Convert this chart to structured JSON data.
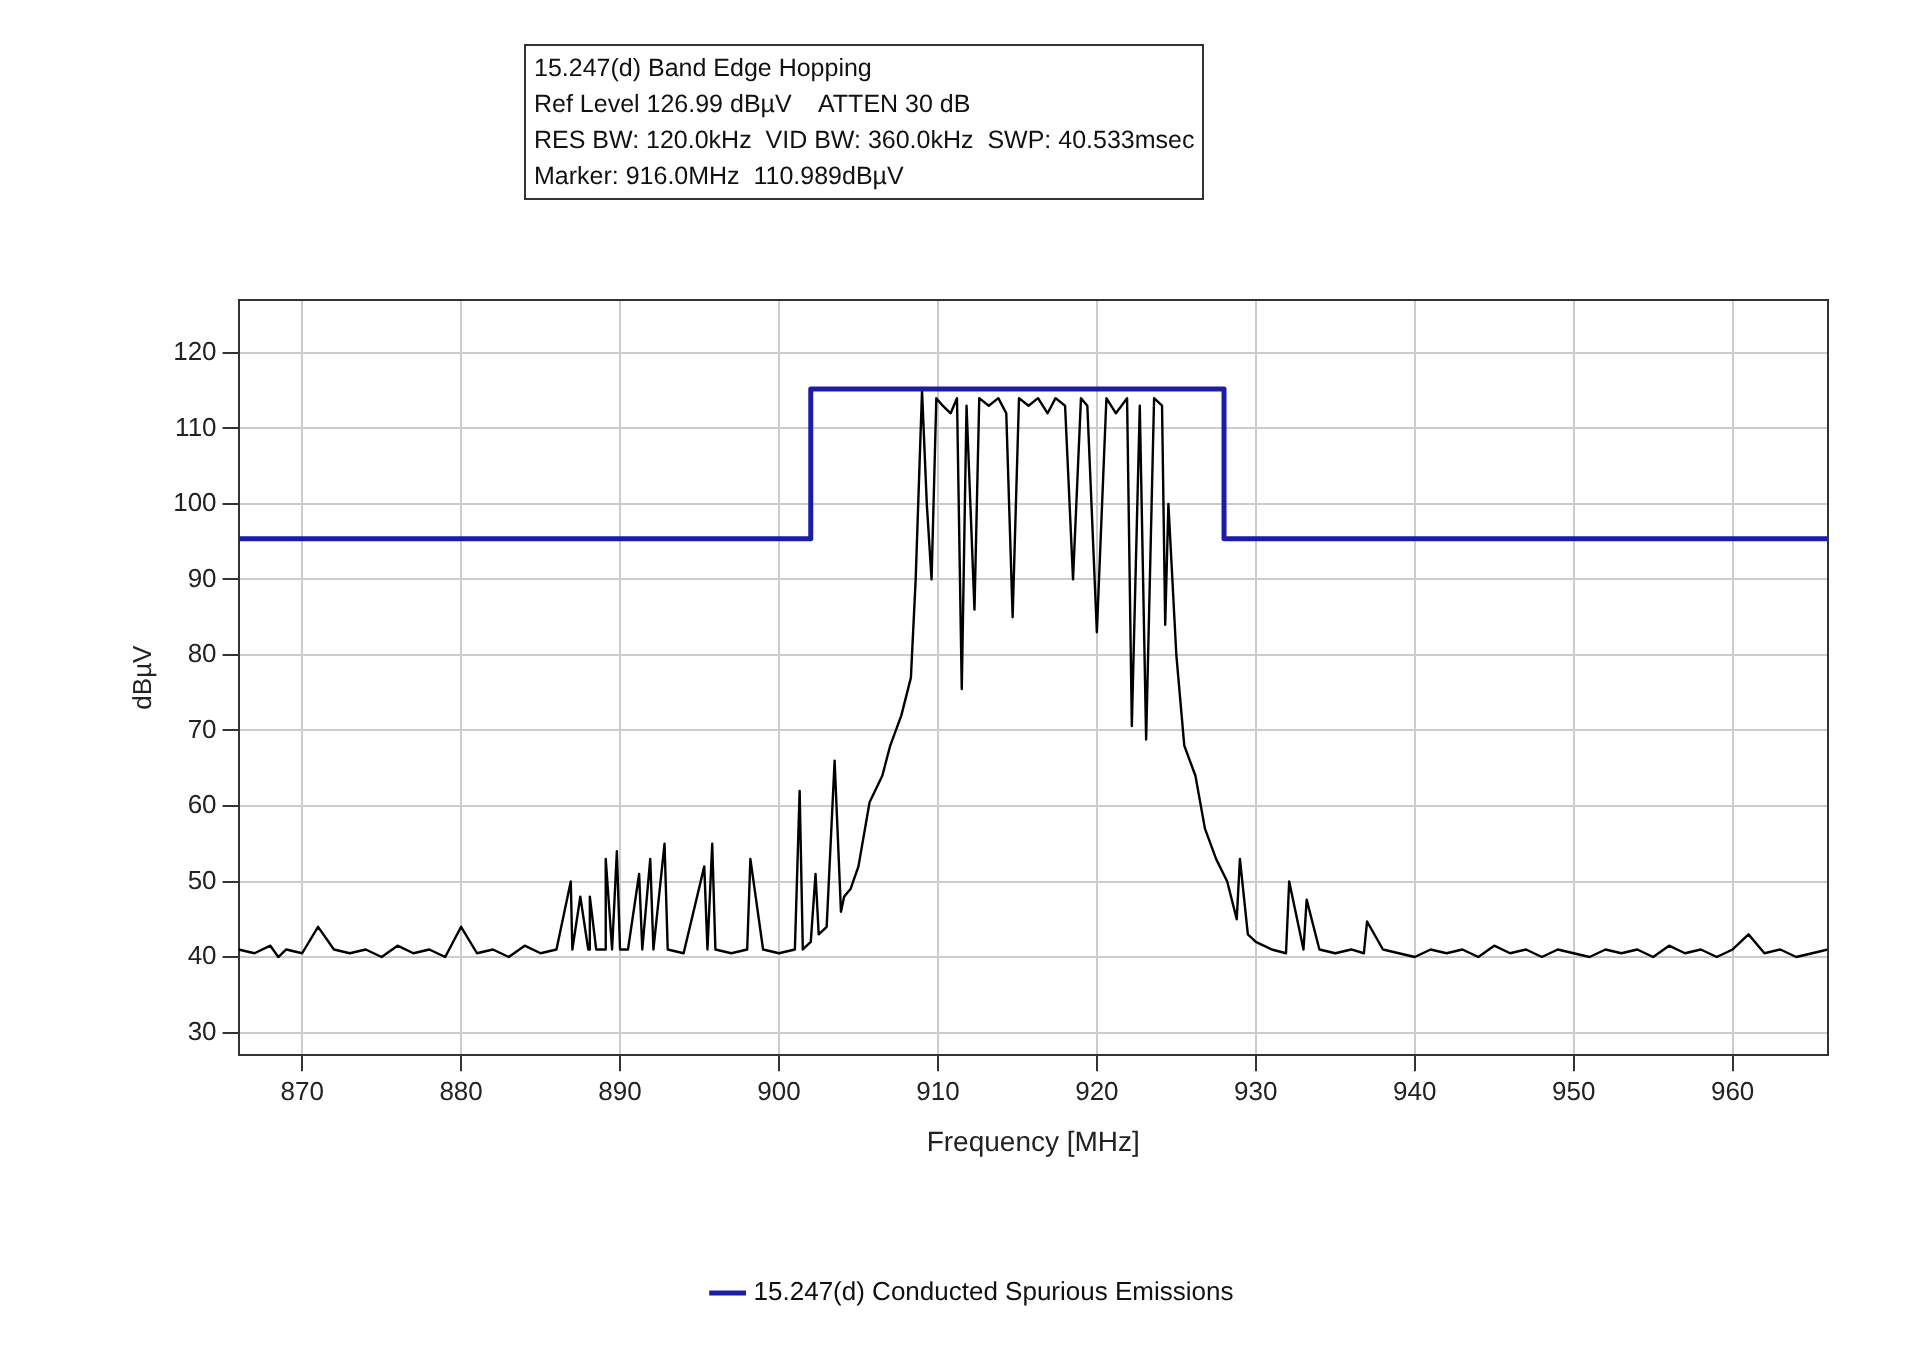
{
  "chart_data": {
    "type": "line",
    "title": "15.247(d) Band Edge Hopping",
    "annotations": [
      "Ref Level 126.99 dBµV    ATTEN 30 dB",
      "RES BW: 120.0kHz  VID BW: 360.0kHz  SWP: 40.533msec",
      "Marker: 916.0MHz  110.989dBµV"
    ],
    "xlabel": "Frequency [MHz]",
    "ylabel": "dBµV",
    "xlim": [
      866,
      966
    ],
    "ylim": [
      27,
      127
    ],
    "xticks": [
      870,
      880,
      890,
      900,
      910,
      920,
      930,
      940,
      950,
      960
    ],
    "yticks": [
      30,
      40,
      50,
      60,
      70,
      80,
      90,
      100,
      110,
      120
    ],
    "grid": true,
    "legend": "bottom",
    "marker": "none",
    "line_style": "solid",
    "series": [
      {
        "name": "15.247(d) Conducted Spurious Emissions",
        "color": "#1c1ca8",
        "x": [
          866,
          902,
          902,
          928,
          928,
          966
        ],
        "values": [
          95.4,
          95.4,
          115.2,
          115.2,
          95.4,
          95.4
        ]
      },
      {
        "color": "#000000",
        "x": [
          866,
          867,
          868,
          868.5,
          869,
          870,
          871,
          872,
          873,
          874,
          875,
          876,
          877,
          878,
          879,
          880,
          881,
          882,
          883,
          884,
          885,
          886,
          886.9,
          887,
          887.5,
          888,
          888.1,
          888.5,
          889,
          889.1,
          889.5,
          889.8,
          890,
          890.5,
          891.2,
          891.4,
          891.9,
          892.1,
          892.8,
          893,
          894,
          895.3,
          895.5,
          895.8,
          896,
          897,
          898,
          898.2,
          899,
          900,
          901,
          901.3,
          901.5,
          902,
          902.3,
          902.5,
          903,
          903.5,
          903.9,
          904.1,
          904.5,
          905,
          905.7,
          906.5,
          907,
          907.7,
          908.3,
          908.6,
          909,
          909.3,
          909.6,
          909.9,
          910.3,
          910.8,
          911.2,
          911.5,
          911.8,
          912.3,
          912.6,
          913.2,
          913.8,
          914.3,
          914.7,
          915.1,
          915.7,
          916.3,
          916.9,
          917.4,
          918,
          918.5,
          919,
          919.4,
          920,
          920.6,
          921.2,
          921.9,
          922.2,
          922.7,
          923.1,
          923.6,
          924.1,
          924.3,
          924.5,
          925,
          925.5,
          926.2,
          926.8,
          927.5,
          928.2,
          928.8,
          929,
          929.5,
          930,
          931,
          931.9,
          932.1,
          933,
          933.2,
          934,
          935,
          936,
          936.8,
          937,
          938,
          939,
          940,
          941,
          942,
          943,
          944,
          945,
          946,
          947,
          948,
          949,
          950,
          951,
          952,
          953,
          954,
          955,
          956,
          957,
          958,
          959,
          960,
          961,
          962,
          963,
          964,
          965,
          966
        ],
        "values": [
          41,
          40.5,
          41.5,
          40,
          41,
          40.5,
          44,
          41,
          40.5,
          41,
          40,
          41.5,
          40.5,
          41,
          40,
          44,
          40.5,
          41,
          40,
          41.5,
          40.5,
          41,
          50,
          41,
          48,
          41,
          48,
          41,
          41,
          53,
          41,
          54,
          41,
          41,
          51,
          41,
          53,
          41,
          55,
          41,
          40.5,
          52,
          41,
          55,
          41,
          40.5,
          41,
          53,
          41,
          40.5,
          41,
          62,
          41,
          42,
          51,
          43,
          44,
          66,
          46,
          48,
          49,
          52,
          60.5,
          64,
          68,
          72,
          77,
          90,
          115,
          100,
          90,
          114,
          113,
          112,
          114,
          75.5,
          113,
          86,
          114,
          113,
          114,
          112,
          85,
          114,
          113,
          114,
          112,
          114,
          113,
          90,
          114,
          113,
          83,
          114,
          112,
          114,
          70.6,
          113,
          68.8,
          114,
          113,
          84,
          100,
          80,
          68,
          64,
          57,
          53,
          50,
          45,
          53,
          43,
          42,
          41,
          40.5,
          50,
          41,
          47.6,
          41,
          40.5,
          41,
          40.5,
          44.7,
          41,
          40.5,
          40,
          41,
          40.5,
          41,
          40,
          41.5,
          40.5,
          41,
          40,
          41,
          40.5,
          40,
          41,
          40.5,
          41,
          40,
          41.5,
          40.5,
          41,
          40,
          41,
          43,
          40.5,
          41,
          40,
          40.5,
          41
        ]
      }
    ]
  }
}
